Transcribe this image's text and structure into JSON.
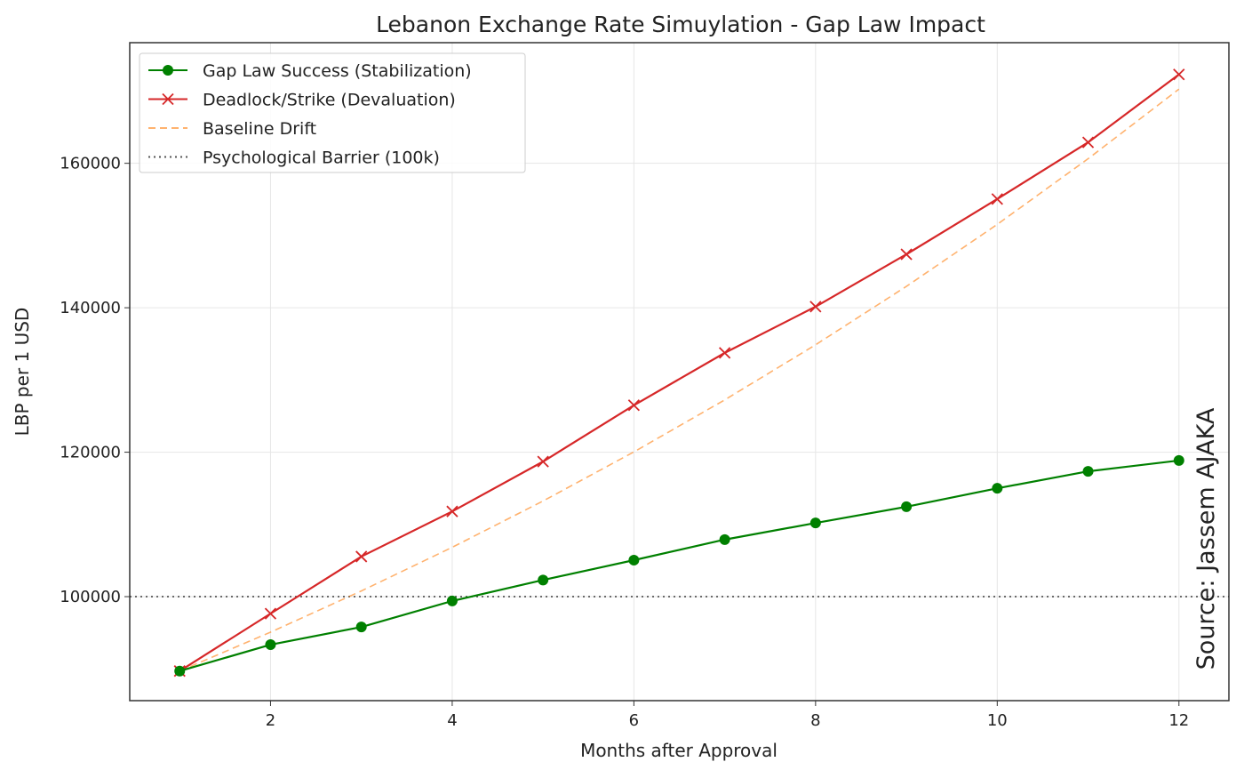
{
  "chart_data": {
    "type": "line",
    "title": "Lebanon Exchange Rate Simuylation - Gap Law Impact",
    "xlabel": "Months after Approval",
    "ylabel": "LBP per 1 USD",
    "xlim": [
      0.45,
      12.55
    ],
    "ylim": [
      85600,
      176700
    ],
    "xticks": [
      2,
      4,
      6,
      8,
      10,
      12
    ],
    "yticks": [
      100000,
      120000,
      140000,
      160000
    ],
    "grid": true,
    "legend_position": "top-left",
    "x": [
      1,
      2,
      3,
      4,
      5,
      6,
      7,
      8,
      9,
      10,
      11,
      12
    ],
    "series": [
      {
        "name": "Gap Law Success (Stabilization)",
        "color": "#008000",
        "style": "solid",
        "marker": "circle",
        "values": [
          89700,
          93350,
          95800,
          99400,
          102300,
          105050,
          107900,
          110200,
          112450,
          115000,
          117350,
          118850
        ]
      },
      {
        "name": "Deadlock/Strike (Devaluation)",
        "color": "#d62728",
        "style": "solid",
        "marker": "x",
        "values": [
          89700,
          97650,
          105550,
          111800,
          118700,
          126500,
          133750,
          140150,
          147400,
          155050,
          162900,
          172300
        ]
      },
      {
        "name": "Baseline Drift",
        "color": "#ff7f0e",
        "style": "dashed",
        "marker": "none",
        "values": [
          89700,
          95080,
          100790,
          106830,
          113240,
          120040,
          127240,
          134870,
          142960,
          151540,
          160630,
          170270
        ]
      }
    ],
    "hlines": [
      {
        "name": "Psychological Barrier (100k)",
        "value": 100000,
        "color": "#555555",
        "style": "dotted"
      }
    ],
    "annotation": "Source: Jassem AJAKA"
  }
}
